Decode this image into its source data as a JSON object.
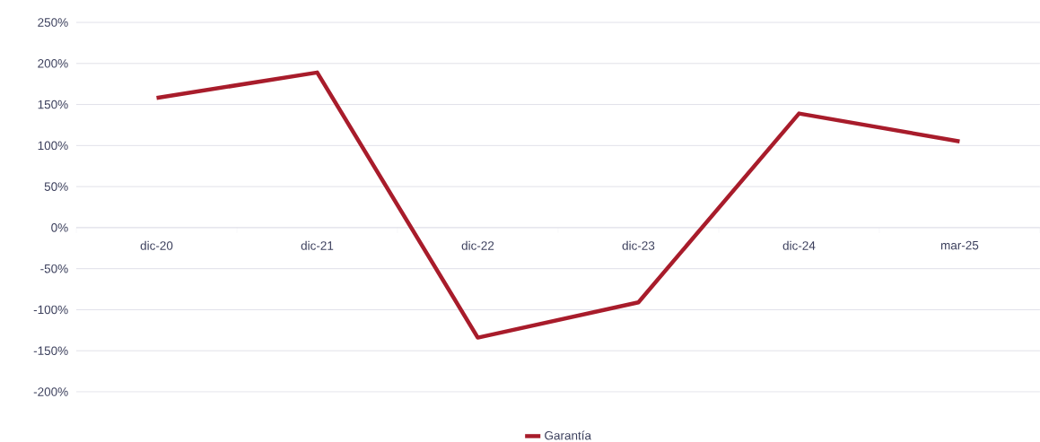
{
  "chart_data": {
    "type": "line",
    "categories": [
      "dic-20",
      "dic-21",
      "dic-22",
      "dic-23",
      "dic-24",
      "mar-25"
    ],
    "series": [
      {
        "name": "Garantía",
        "color": "#a81c2b",
        "values": [
          158,
          189,
          -134,
          -91,
          139,
          105
        ]
      }
    ],
    "ylim": [
      -200,
      250
    ],
    "yticks": [
      {
        "value": -200,
        "label": "-200%"
      },
      {
        "value": -150,
        "label": "-150%"
      },
      {
        "value": -100,
        "label": "-100%"
      },
      {
        "value": -50,
        "label": "-50%"
      },
      {
        "value": 0,
        "label": "0%"
      },
      {
        "value": 50,
        "label": "50%"
      },
      {
        "value": 100,
        "label": "100%"
      },
      {
        "value": 150,
        "label": "150%"
      },
      {
        "value": 200,
        "label": "200%"
      },
      {
        "value": 250,
        "label": "250%"
      }
    ],
    "grid": "y",
    "legend": "bottom"
  }
}
